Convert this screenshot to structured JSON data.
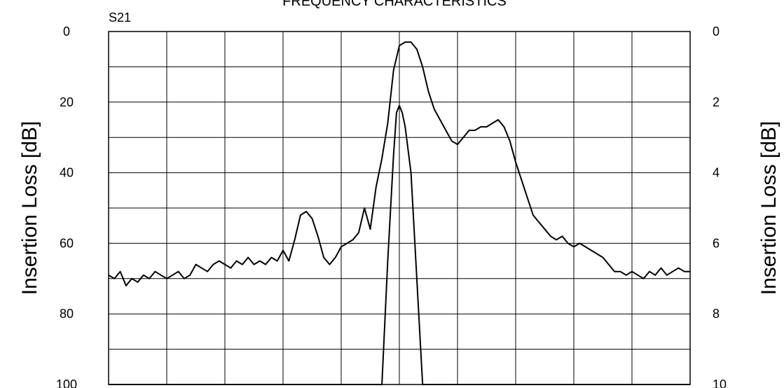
{
  "chart_data": {
    "type": "line",
    "title": "FREQUENCY CHARACTERISTICS",
    "subtitle": "S21",
    "ylabel_left": "Insertion Loss [dB]",
    "ylabel_right": "Insertion Loss [dB]",
    "xlabel": "",
    "ylim_left": [
      0,
      100
    ],
    "ylim_right": [
      0,
      10
    ],
    "y_inverted": true,
    "yticks_left": [
      "0",
      "20",
      "40",
      "60",
      "80",
      "100"
    ],
    "yticks_right": [
      "0",
      "2",
      "4",
      "6",
      "8",
      "10"
    ],
    "grid": true,
    "x_divisions": 10,
    "y_divisions": 10,
    "x_range": [
      0,
      10
    ],
    "series": [
      {
        "axis": "left",
        "x": [
          0,
          0.1,
          0.2,
          0.3,
          0.4,
          0.5,
          0.6,
          0.7,
          0.8,
          0.9,
          1.0,
          1.1,
          1.2,
          1.3,
          1.4,
          1.5,
          1.6,
          1.7,
          1.8,
          1.9,
          2.0,
          2.1,
          2.2,
          2.3,
          2.4,
          2.5,
          2.6,
          2.7,
          2.8,
          2.9,
          3.0,
          3.1,
          3.2,
          3.3,
          3.4,
          3.5,
          3.6,
          3.7,
          3.8,
          3.9,
          4.0,
          4.1,
          4.2,
          4.3,
          4.4,
          4.5,
          4.6,
          4.7,
          4.8,
          4.9,
          5.0,
          5.1,
          5.2,
          5.3,
          5.4,
          5.5,
          5.6,
          5.7,
          5.8,
          5.9,
          6.0,
          6.1,
          6.2,
          6.3,
          6.4,
          6.5,
          6.6,
          6.7,
          6.8,
          6.9,
          7.0,
          7.1,
          7.2,
          7.3,
          7.4,
          7.5,
          7.6,
          7.7,
          7.8,
          7.9,
          8.0,
          8.1,
          8.2,
          8.3,
          8.4,
          8.5,
          8.6,
          8.7,
          8.8,
          8.9,
          9.0,
          9.1,
          9.2,
          9.3,
          9.4,
          9.5,
          9.6,
          9.7,
          9.8,
          9.9,
          10.0
        ],
        "y": [
          69,
          70,
          68,
          72,
          70,
          71,
          69,
          70,
          68,
          69,
          70,
          69,
          68,
          70,
          69,
          66,
          67,
          68,
          66,
          65,
          66,
          67,
          65,
          66,
          64,
          66,
          65,
          66,
          64,
          65,
          62,
          65,
          59,
          52,
          51,
          53,
          58,
          64,
          66,
          64,
          61,
          60,
          59,
          57,
          50,
          56,
          44,
          36,
          26,
          11,
          4,
          3,
          3,
          5,
          10,
          17,
          22,
          25,
          28,
          31,
          32,
          30,
          28,
          28,
          27,
          27,
          26,
          25,
          27,
          31,
          37,
          42,
          47,
          52,
          54,
          56,
          58,
          59,
          58,
          60,
          61,
          60,
          61,
          62,
          63,
          64,
          66,
          68,
          68,
          69,
          68,
          69,
          70,
          68,
          69,
          67,
          69,
          68,
          67,
          68,
          68
        ]
      },
      {
        "axis": "right",
        "x": [
          0,
          4.7,
          4.8,
          4.9,
          4.95,
          5.0,
          5.05,
          5.1,
          5.2,
          5.3,
          5.4,
          5.5,
          10
        ],
        "y": [
          10,
          10,
          6.5,
          3.5,
          2.3,
          2.1,
          2.3,
          2.7,
          4.0,
          7.0,
          10,
          10,
          10
        ]
      }
    ]
  }
}
